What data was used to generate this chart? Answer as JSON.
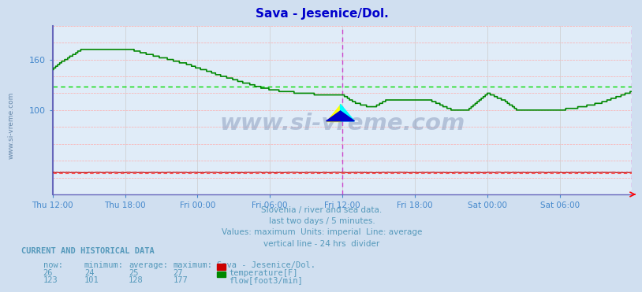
{
  "title": "Sava - Jesenice/Dol.",
  "title_color": "#0000cc",
  "bg_color": "#d0dff0",
  "plot_bg_color": "#e0ecf8",
  "figsize": [
    8.03,
    3.6
  ],
  "dpi": 100,
  "tick_color": "#4488cc",
  "grid_color_h": "#ffaaaa",
  "grid_color_v": "#cccccc",
  "avg_line_color_flow": "#00dd00",
  "avg_line_color_temp": "#ff5555",
  "divider_color": "#cc44cc",
  "spine_color": "#6666bb",
  "watermark_color": "#8899bb",
  "watermark_side_color": "#6688aa",
  "subtitle_color": "#5599bb",
  "subtitle_lines": [
    "Slovenia / river and sea data.",
    "last two days / 5 minutes.",
    "Values: maximum  Units: imperial  Line: average",
    "vertical line - 24 hrs  divider"
  ],
  "footer_header": "CURRENT AND HISTORICAL DATA",
  "footer_cols": [
    "now:",
    "minimum:",
    "average:",
    "maximum:",
    "Sava - Jesenice/Dol."
  ],
  "footer_temp": [
    "26",
    "24",
    "25",
    "27",
    "temperature[F]"
  ],
  "footer_flow": [
    "123",
    "101",
    "128",
    "177",
    "flow[foot3/min]"
  ],
  "temp_color": "#cc0000",
  "flow_color": "#008800",
  "ylim": [
    0,
    200
  ],
  "ytick_vals": [
    100,
    160
  ],
  "num_points": 577,
  "avg_flow": 128,
  "avg_temp": 25,
  "divider_idx": 288,
  "tick_positions": [
    0,
    72,
    144,
    216,
    288,
    360,
    432,
    504,
    576
  ],
  "tick_labels": [
    "Thu 12:00",
    "Thu 18:00",
    "Fri 00:00",
    "Fri 06:00",
    "Fri 12:00",
    "Fri 18:00",
    "Sat 00:00",
    "Sat 06:00",
    ""
  ]
}
